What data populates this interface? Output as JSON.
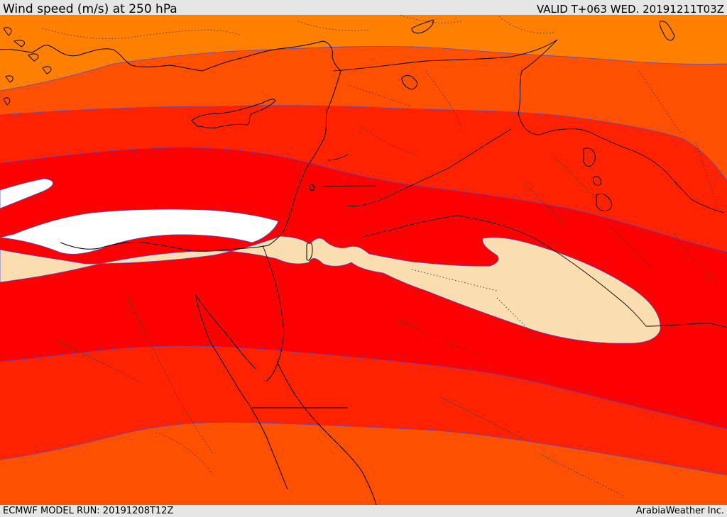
{
  "header": {
    "title": "Wind speed (m/s) at 250 hPa",
    "valid": "VALID T+063 WED. 20191211T03Z"
  },
  "footer": {
    "model_run": "ECMWF MODEL RUN: 20191208T12Z",
    "credit": "ArabiaWeather Inc."
  },
  "colors": {
    "band_weakest": "#ff7f00",
    "band_weak": "#ff4f00",
    "band_moderate": "#ff2200",
    "band_strong": "#ff0000",
    "band_jet": "#fbdeb0",
    "band_core": "#ffffff",
    "contour_line": "#4b4bd6",
    "coastline": "#000000"
  }
}
